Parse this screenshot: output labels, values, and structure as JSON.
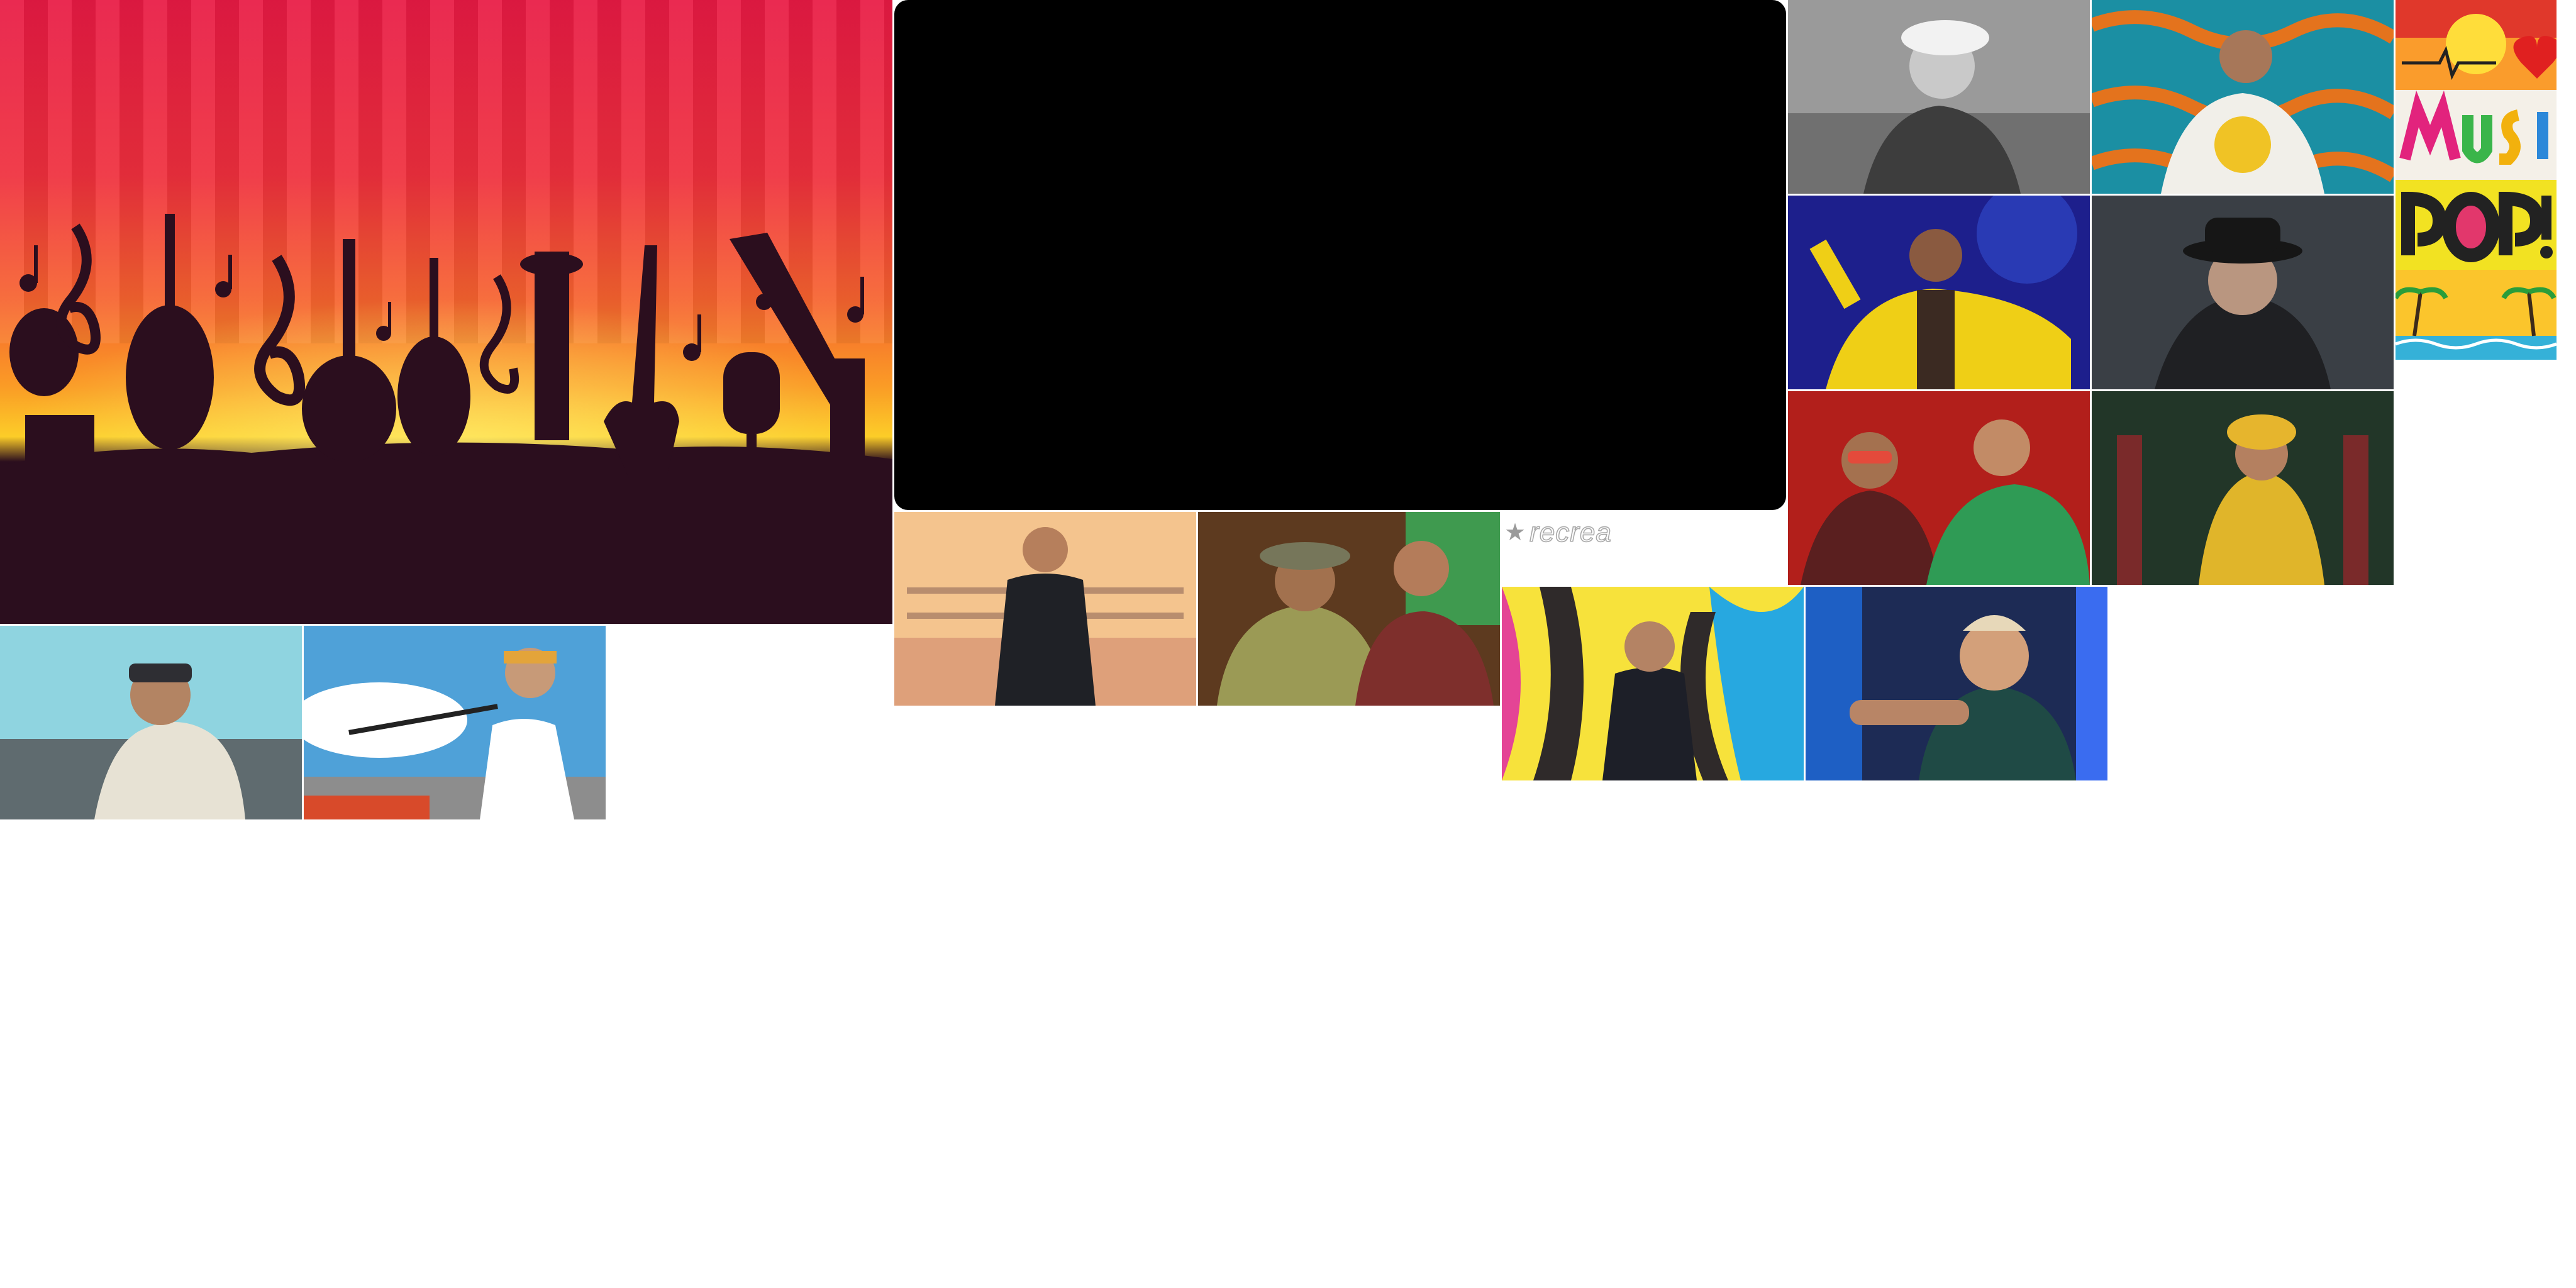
{
  "gallery": {
    "logo_text": "recrea",
    "logo_icon": "star-icon",
    "hero": {
      "icon": "music-instruments-silhouette"
    },
    "player": {
      "state": "black"
    },
    "colors": {
      "hero_red": "#e81a44",
      "hero_yellow": "#fccd28",
      "hero_dark": "#2b0e1e",
      "player": "#000000"
    },
    "tiles": [
      "artist-thumbnail-wheelchair",
      "artist-thumbnail-bandana",
      "artist-thumbnail-desert-vest",
      "artist-thumbnail-duo-bar",
      "artist-thumbnail-graffiti",
      "artist-thumbnail-neon-room",
      "artist-thumbnail-white-cap",
      "artist-thumbnail-smiley-hoodie",
      "artist-thumbnail-yellow-suit",
      "artist-thumbnail-black-hat",
      "artist-thumbnail-duo-red",
      "artist-thumbnail-yellow-dress",
      "sticker-music-heart",
      "sticker-music-pop"
    ]
  }
}
